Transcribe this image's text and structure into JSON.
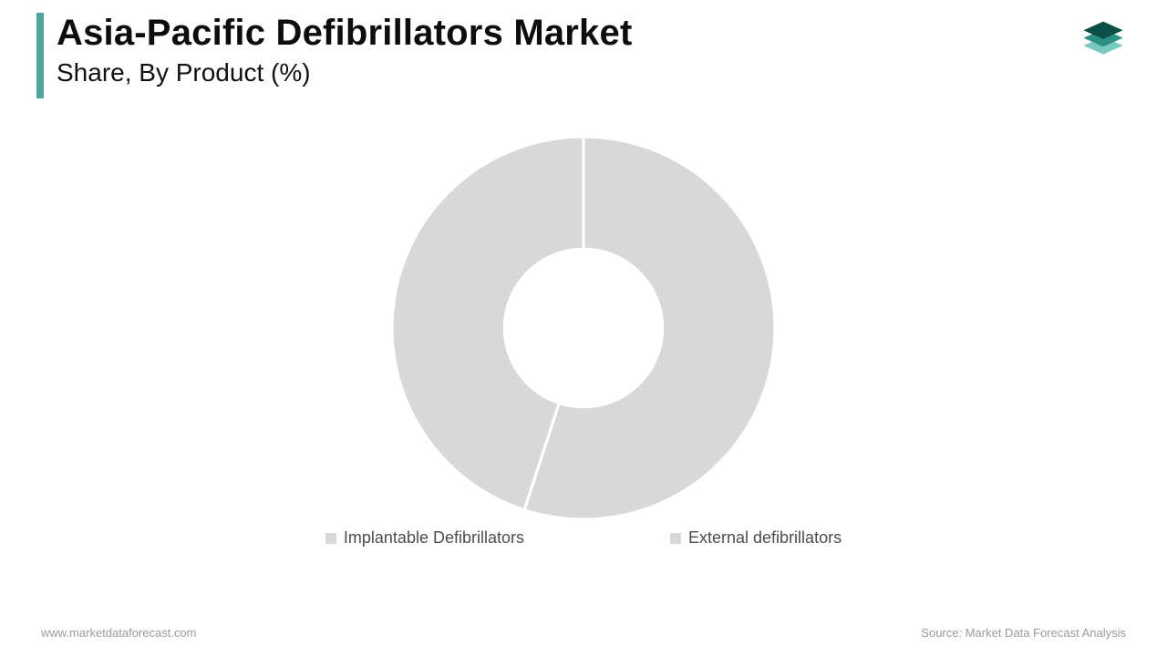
{
  "header": {
    "title": "Asia-Pacific Defibrillators Market",
    "subtitle": "Share, By Product (%)",
    "accent_color": "#4aa7a0"
  },
  "logo": {
    "layer_colors": [
      "#0b4f47",
      "#2a9086",
      "#7ac9c1"
    ]
  },
  "chart": {
    "type": "donut",
    "inner_radius_pct": 42,
    "outer_radius_pct": 100,
    "background_color": "#ffffff",
    "gap_color": "#ffffff",
    "gap_width": 3,
    "series": [
      {
        "label": "Implantable Defibrillators",
        "value": 55,
        "color": "#d8d8d8"
      },
      {
        "label": "External defibrillators",
        "value": 45,
        "color": "#d8d8d8"
      }
    ],
    "legend": {
      "marker_color": "#d8d8d8",
      "text_color": "#4c4c4c",
      "font_size": 18
    }
  },
  "footer": {
    "website": "www.marketdataforecast.com",
    "source": "Source: Market Data Forecast Analysis",
    "text_color": "#9a9a9a",
    "font_size": 13
  }
}
